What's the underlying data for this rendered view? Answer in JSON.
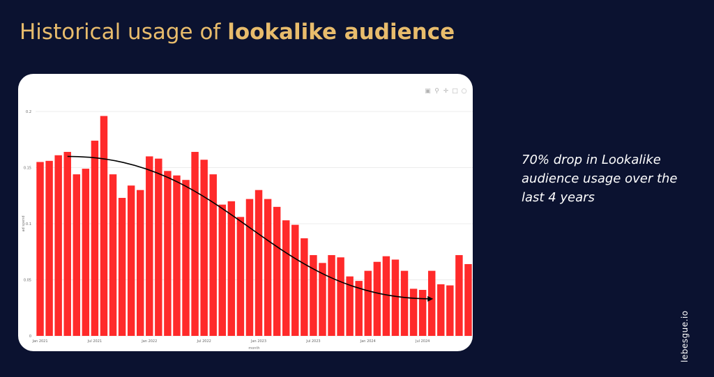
{
  "header": {
    "title_regular": "Historical usage of ",
    "title_bold": "lookalike audience"
  },
  "callout": {
    "text": "70% drop in Lookalike audience usage over the last 4 years"
  },
  "brand": {
    "text": "lebesgue.io"
  },
  "toolbar": {
    "icons": [
      "camera-icon",
      "zoom-icon",
      "pan-icon",
      "select-box-icon",
      "lasso-icon"
    ]
  },
  "colors": {
    "background": "#0b1230",
    "title": "#e8bc6c",
    "bar": "#ff2a2a",
    "trend_arrow": "#000000"
  },
  "chart_data": {
    "type": "bar",
    "xlabel": "month",
    "ylabel": "ad spend",
    "ylim": [
      0,
      0.2
    ],
    "yticks": [
      0,
      0.05,
      0.1,
      0.15,
      0.2
    ],
    "ytick_labels": [
      "0",
      "0.05",
      "0.1",
      "0.15",
      "0.2"
    ],
    "xtick_labels": [
      {
        "label": "Jan 2021",
        "index": 0
      },
      {
        "label": "Jul 2021",
        "index": 6
      },
      {
        "label": "Jan 2022",
        "index": 12
      },
      {
        "label": "Jul 2022",
        "index": 18
      },
      {
        "label": "Jan 2023",
        "index": 24
      },
      {
        "label": "Jul 2023",
        "index": 30
      },
      {
        "label": "Jan 2024",
        "index": 36
      },
      {
        "label": "Jul 2024",
        "index": 42
      }
    ],
    "values": [
      0.155,
      0.156,
      0.161,
      0.164,
      0.144,
      0.149,
      0.174,
      0.196,
      0.144,
      0.123,
      0.134,
      0.13,
      0.16,
      0.158,
      0.147,
      0.143,
      0.139,
      0.164,
      0.157,
      0.144,
      0.117,
      0.12,
      0.106,
      0.122,
      0.13,
      0.122,
      0.115,
      0.103,
      0.099,
      0.087,
      0.072,
      0.065,
      0.072,
      0.07,
      0.053,
      0.049,
      0.058,
      0.066,
      0.071,
      0.068,
      0.058,
      0.042,
      0.041,
      0.058,
      0.046,
      0.045,
      0.072,
      0.064
    ],
    "trend_arrow": {
      "from_index": 3,
      "from_value": 0.16,
      "to_index": 43,
      "to_value": 0.033
    },
    "grid": true
  }
}
